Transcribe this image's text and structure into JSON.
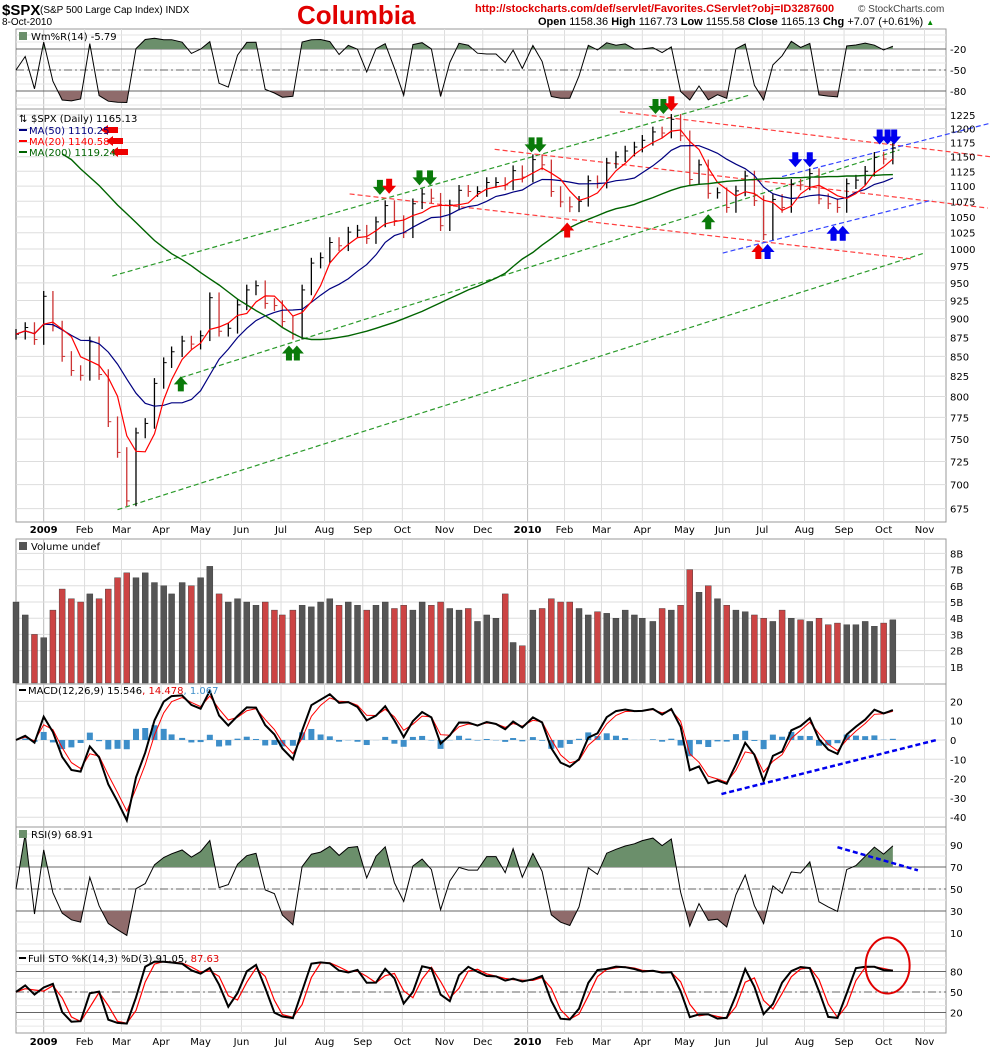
{
  "header": {
    "symbol": "$SPX",
    "description": "(S&P 500 Large Cap Index) INDX",
    "date": "8-Oct-2010",
    "title": "Columbia",
    "url": "http://stockcharts.com/def/servlet/Favorites.CServlet?obj=ID3287600",
    "copyright": "© StockCharts.com",
    "open_label": "Open",
    "open": "1158.36",
    "high_label": "High",
    "high": "1167.73",
    "low_label": "Low",
    "low": "1155.58",
    "close_label": "Close",
    "close": "1165.13",
    "chg_label": "Chg",
    "chg": "+7.07 (+0.61%)",
    "chg_icon": "triangle-up-icon"
  },
  "panels": {
    "willr": {
      "label": "Wm%R(14) -5.79",
      "ticks": [
        -20,
        -50,
        -80
      ]
    },
    "price": {
      "label": "$SPX (Daily) 1165.13",
      "ma50": "MA(50) 1110.25",
      "ma20": "MA(20) 1140.58",
      "ma200": "MA(200) 1119.24",
      "ticks": [
        675,
        700,
        725,
        750,
        775,
        800,
        825,
        850,
        875,
        900,
        925,
        950,
        975,
        1000,
        1025,
        1050,
        1075,
        1100,
        1125,
        1150,
        1175,
        1200,
        1225
      ]
    },
    "volume": {
      "label": "Volume undef",
      "ticks": [
        "1B",
        "2B",
        "3B",
        "4B",
        "5B",
        "6B",
        "7B",
        "8B"
      ]
    },
    "macd": {
      "label": "MACD(12,26,9)",
      "v1": "15.546",
      "v2": "14.478",
      "v3": "1.067",
      "ticks": [
        20,
        10,
        0,
        -10,
        -20,
        -30,
        -40
      ]
    },
    "rsi": {
      "label": "RSI(9) 68.91",
      "ticks": [
        90,
        70,
        50,
        30,
        10
      ]
    },
    "sto": {
      "label": "Full STO %K(14,3) %D(3) 91.05,",
      "v2": "87.63",
      "ticks": [
        80,
        50,
        20
      ]
    }
  },
  "colors": {
    "ma50": "#000080",
    "ma20": "#ff0000",
    "ma200": "#006400",
    "up": "#000000",
    "down": "#cc3333",
    "macd_hist": "#3d8ec9",
    "overbought_fill": "#6b8f6b",
    "oversold_fill": "#8f6b6b",
    "annotation_red": "#e00000"
  },
  "chart_data": {
    "type": "bar",
    "scale": "log",
    "ylim": [
      675,
      1225
    ],
    "grid": true,
    "x_axis_labels": [
      {
        "label": "2009",
        "date": "2009-01-02",
        "bold": true
      },
      {
        "label": "Feb",
        "date": "2009-02-02"
      },
      {
        "label": "Mar",
        "date": "2009-03-02"
      },
      {
        "label": "Apr",
        "date": "2009-04-01"
      },
      {
        "label": "May",
        "date": "2009-05-01"
      },
      {
        "label": "Jun",
        "date": "2009-06-01"
      },
      {
        "label": "Jul",
        "date": "2009-07-01"
      },
      {
        "label": "Aug",
        "date": "2009-08-03"
      },
      {
        "label": "Sep",
        "date": "2009-09-01"
      },
      {
        "label": "Oct",
        "date": "2009-10-01"
      },
      {
        "label": "Nov",
        "date": "2009-11-02"
      },
      {
        "label": "Dec",
        "date": "2009-12-01"
      },
      {
        "label": "2010",
        "date": "2010-01-04",
        "bold": true
      },
      {
        "label": "Feb",
        "date": "2010-02-01"
      },
      {
        "label": "Mar",
        "date": "2010-03-01"
      },
      {
        "label": "Apr",
        "date": "2010-04-01"
      },
      {
        "label": "May",
        "date": "2010-05-03"
      },
      {
        "label": "Jun",
        "date": "2010-06-01"
      },
      {
        "label": "Jul",
        "date": "2010-07-01"
      },
      {
        "label": "Aug",
        "date": "2010-08-02"
      },
      {
        "label": "Sep",
        "date": "2010-09-01"
      },
      {
        "label": "Oct",
        "date": "2010-10-01"
      },
      {
        "label": "Nov",
        "date": "2010-11-01"
      }
    ],
    "dates": [
      "2008-12-12",
      "2008-12-19",
      "2008-12-26",
      "2009-01-02",
      "2009-01-09",
      "2009-01-16",
      "2009-01-23",
      "2009-01-30",
      "2009-02-06",
      "2009-02-13",
      "2009-02-20",
      "2009-02-27",
      "2009-03-06",
      "2009-03-13",
      "2009-03-20",
      "2009-03-27",
      "2009-04-03",
      "2009-04-09",
      "2009-04-17",
      "2009-04-24",
      "2009-05-01",
      "2009-05-08",
      "2009-05-15",
      "2009-05-22",
      "2009-05-29",
      "2009-06-05",
      "2009-06-12",
      "2009-06-19",
      "2009-06-26",
      "2009-07-02",
      "2009-07-10",
      "2009-07-17",
      "2009-07-24",
      "2009-07-31",
      "2009-08-07",
      "2009-08-14",
      "2009-08-21",
      "2009-08-28",
      "2009-09-04",
      "2009-09-11",
      "2009-09-18",
      "2009-09-25",
      "2009-10-02",
      "2009-10-09",
      "2009-10-16",
      "2009-10-23",
      "2009-10-30",
      "2009-11-06",
      "2009-11-13",
      "2009-11-20",
      "2009-11-27",
      "2009-12-04",
      "2009-12-11",
      "2009-12-18",
      "2009-12-24",
      "2009-12-31",
      "2010-01-08",
      "2010-01-15",
      "2010-01-22",
      "2010-01-29",
      "2010-02-05",
      "2010-02-12",
      "2010-02-19",
      "2010-02-26",
      "2010-03-05",
      "2010-03-12",
      "2010-03-19",
      "2010-03-26",
      "2010-04-01",
      "2010-04-09",
      "2010-04-16",
      "2010-04-23",
      "2010-04-30",
      "2010-05-07",
      "2010-05-14",
      "2010-05-21",
      "2010-05-28",
      "2010-06-04",
      "2010-06-11",
      "2010-06-18",
      "2010-06-25",
      "2010-07-02",
      "2010-07-09",
      "2010-07-16",
      "2010-07-23",
      "2010-07-30",
      "2010-08-06",
      "2010-08-13",
      "2010-08-20",
      "2010-08-27",
      "2010-09-03",
      "2010-09-10",
      "2010-09-17",
      "2010-09-24",
      "2010-10-01",
      "2010-10-08"
    ],
    "series": [
      {
        "name": "$SPX",
        "values": [
          879,
          888,
          872,
          931,
          890,
          850,
          832,
          826,
          869,
          827,
          770,
          735,
          683,
          757,
          768,
          816,
          842,
          856,
          870,
          866,
          877,
          929,
          883,
          887,
          919,
          940,
          946,
          921,
          918,
          896,
          879,
          940,
          979,
          987,
          1010,
          1005,
          1026,
          1029,
          1016,
          1042,
          1068,
          1044,
          1025,
          1071,
          1087,
          1080,
          1036,
          1069,
          1093,
          1091,
          1091,
          1106,
          1106,
          1102,
          1126,
          1115,
          1145,
          1136,
          1091,
          1074,
          1066,
          1075,
          1109,
          1105,
          1139,
          1150,
          1160,
          1167,
          1179,
          1194,
          1192,
          1217,
          1187,
          1111,
          1136,
          1088,
          1089,
          1065,
          1092,
          1117,
          1076,
          1022,
          1078,
          1065,
          1103,
          1102,
          1121,
          1079,
          1071,
          1065,
          1104,
          1110,
          1125,
          1149,
          1146,
          1165.13
        ]
      },
      {
        "name": "MA(200)",
        "values": [
          null,
          null,
          null,
          null,
          null,
          1155,
          1145,
          1129,
          1115,
          1101,
          1085,
          1069,
          1055,
          1041,
          1027,
          1013,
          1002,
          993,
          984,
          975,
          965,
          956,
          947,
          937,
          927,
          919,
          911,
          904,
          896,
          888,
          880,
          874,
          872,
          872,
          873,
          875,
          877,
          880,
          883,
          887,
          891,
          895,
          900,
          905,
          910,
          916,
          922,
          928,
          934,
          940,
          945,
          951,
          957,
          964,
          974,
          985,
          995,
          1006,
          1016,
          1027,
          1033,
          1040,
          1046,
          1052,
          1058,
          1063,
          1066,
          1070,
          1075,
          1081,
          1087,
          1093,
          1098,
          1101,
          1103,
          1104,
          1106,
          1108,
          1109,
          1110,
          1111,
          1112,
          1113,
          1113,
          1114,
          1114,
          1115,
          1115,
          1116,
          1116,
          1117,
          1117,
          1118,
          1118,
          1119,
          1119.24
        ]
      },
      {
        "name": "Volume",
        "values": [
          5.0,
          4.2,
          3.0,
          2.8,
          4.5,
          5.8,
          5.2,
          5.0,
          5.5,
          5.2,
          5.8,
          6.5,
          6.8,
          6.5,
          6.8,
          6.2,
          6.0,
          5.5,
          6.2,
          6.0,
          6.5,
          7.2,
          5.5,
          5.0,
          5.2,
          5.0,
          4.8,
          5.0,
          4.5,
          4.2,
          4.5,
          4.8,
          4.7,
          5.0,
          5.2,
          4.8,
          5.0,
          4.8,
          4.5,
          4.8,
          5.0,
          4.6,
          4.8,
          4.5,
          5.0,
          4.8,
          5.0,
          4.6,
          4.5,
          4.6,
          3.8,
          4.2,
          4.0,
          5.5,
          2.5,
          2.3,
          4.5,
          4.6,
          5.2,
          5.0,
          5.0,
          4.6,
          4.2,
          4.4,
          4.3,
          4.0,
          4.5,
          4.2,
          4.0,
          3.8,
          4.6,
          4.5,
          4.8,
          7.0,
          5.6,
          6.0,
          5.2,
          4.8,
          4.5,
          4.4,
          4.2,
          4.0,
          3.8,
          4.5,
          4.0,
          3.9,
          3.8,
          4.0,
          3.6,
          3.7,
          3.6,
          3.6,
          3.8,
          3.5,
          3.7,
          3.9
        ]
      }
    ],
    "trendlines": [
      {
        "color": "green",
        "from": [
          "2009-02-23",
          960
        ],
        "to": [
          "2010-06-22",
          1263
        ]
      },
      {
        "color": "green",
        "from": [
          "2009-04-16",
          823
        ],
        "to": [
          "2010-10-13",
          1162
        ]
      },
      {
        "color": "green",
        "from": [
          "2009-02-27",
          674
        ],
        "to": [
          "2010-11-01",
          994
        ]
      },
      {
        "color": "red",
        "from": [
          "2010-03-15",
          1231
        ],
        "to": [
          "2010-12-21",
          1150
        ]
      },
      {
        "color": "red",
        "from": [
          "2009-12-10",
          1163
        ],
        "to": [
          "2010-12-19",
          1064
        ]
      },
      {
        "color": "red",
        "from": [
          "2009-08-22",
          1087
        ],
        "to": [
          "2010-10-23",
          985
        ]
      },
      {
        "color": "blue",
        "from": [
          "2010-07-16",
          1116
        ],
        "to": [
          "2010-12-21",
          1210
        ]
      },
      {
        "color": "blue",
        "from": [
          "2010-06-01",
          994
        ],
        "to": [
          "2010-11-07",
          1077
        ]
      }
    ],
    "signals": [
      {
        "type": "up",
        "color": "green",
        "date": "2009-04-16",
        "price": 816
      },
      {
        "type": "up",
        "color": "green",
        "date": "2009-07-07",
        "price": 855
      },
      {
        "type": "up",
        "color": "green",
        "date": "2009-07-13",
        "price": 855
      },
      {
        "type": "down",
        "color": "green",
        "date": "2009-09-14",
        "price": 1097
      },
      {
        "type": "down",
        "color": "red",
        "date": "2009-09-21",
        "price": 1099
      },
      {
        "type": "down",
        "color": "green",
        "date": "2009-10-14",
        "price": 1113
      },
      {
        "type": "down",
        "color": "green",
        "date": "2009-10-22",
        "price": 1113
      },
      {
        "type": "down",
        "color": "green",
        "date": "2010-01-07",
        "price": 1170
      },
      {
        "type": "down",
        "color": "green",
        "date": "2010-01-13",
        "price": 1170
      },
      {
        "type": "up",
        "color": "red",
        "date": "2010-02-03",
        "price": 1030
      },
      {
        "type": "down",
        "color": "green",
        "date": "2010-04-11",
        "price": 1240
      },
      {
        "type": "down",
        "color": "green",
        "date": "2010-04-17",
        "price": 1240
      },
      {
        "type": "down",
        "color": "red",
        "date": "2010-04-23",
        "price": 1245
      },
      {
        "type": "up",
        "color": "green",
        "date": "2010-05-21",
        "price": 1043
      },
      {
        "type": "up",
        "color": "red",
        "date": "2010-06-28",
        "price": 997
      },
      {
        "type": "up",
        "color": "blue",
        "date": "2010-07-05",
        "price": 997
      },
      {
        "type": "down",
        "color": "blue",
        "date": "2010-07-26",
        "price": 1144
      },
      {
        "type": "down",
        "color": "blue",
        "date": "2010-08-06",
        "price": 1144
      },
      {
        "type": "up",
        "color": "blue",
        "date": "2010-08-24",
        "price": 1025
      },
      {
        "type": "up",
        "color": "blue",
        "date": "2010-08-31",
        "price": 1025
      },
      {
        "type": "down",
        "color": "blue",
        "date": "2010-09-28",
        "price": 1184
      },
      {
        "type": "down",
        "color": "blue",
        "date": "2010-10-04",
        "price": 1184
      },
      {
        "type": "down",
        "color": "blue",
        "date": "2010-10-09",
        "price": 1184
      }
    ],
    "macd_trendline": {
      "from": [
        "2010-05-31",
        -28
      ],
      "to": [
        "2010-11-10",
        0
      ]
    },
    "rsi_trendline": {
      "from": [
        "2010-08-27",
        88
      ],
      "to": [
        "2010-10-27",
        67
      ]
    },
    "sto_highlight": {
      "date": "2010-10-01",
      "value": 80
    }
  }
}
